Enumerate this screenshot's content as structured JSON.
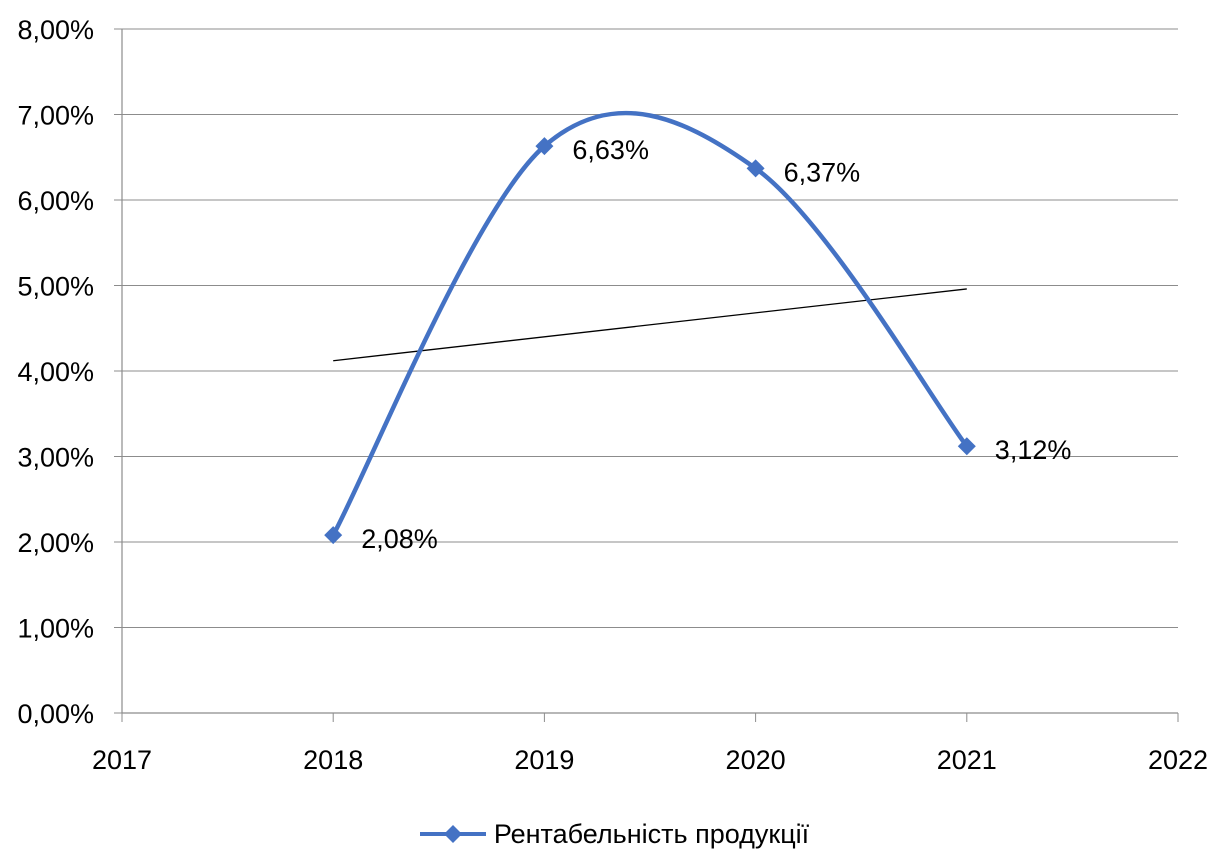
{
  "chart_data": {
    "type": "line",
    "title": "",
    "xlabel": "",
    "ylabel": "",
    "x": [
      2018,
      2019,
      2020,
      2021
    ],
    "series": [
      {
        "name": "Рентабельність продукції",
        "values": [
          2.08,
          6.63,
          6.37,
          3.12
        ],
        "data_labels": [
          "2,08%",
          "6,63%",
          "6,37%",
          "3,12%"
        ],
        "smoothed": true,
        "color": "#4472c4",
        "marker": "diamond"
      }
    ],
    "trendline": {
      "type": "linear",
      "x": [
        2018,
        2021
      ],
      "y": [
        4.12,
        4.96
      ],
      "color": "#000000"
    },
    "xlim": [
      2017,
      2022
    ],
    "ylim": [
      0,
      8
    ],
    "x_ticks": [
      "2017",
      "2018",
      "2019",
      "2020",
      "2021",
      "2022"
    ],
    "y_ticks": [
      "0,00%",
      "1,00%",
      "2,00%",
      "3,00%",
      "4,00%",
      "5,00%",
      "6,00%",
      "7,00%",
      "8,00%"
    ],
    "grid": true,
    "legend_position": "bottom"
  },
  "legend": {
    "label": "Рентабельність продукції"
  }
}
